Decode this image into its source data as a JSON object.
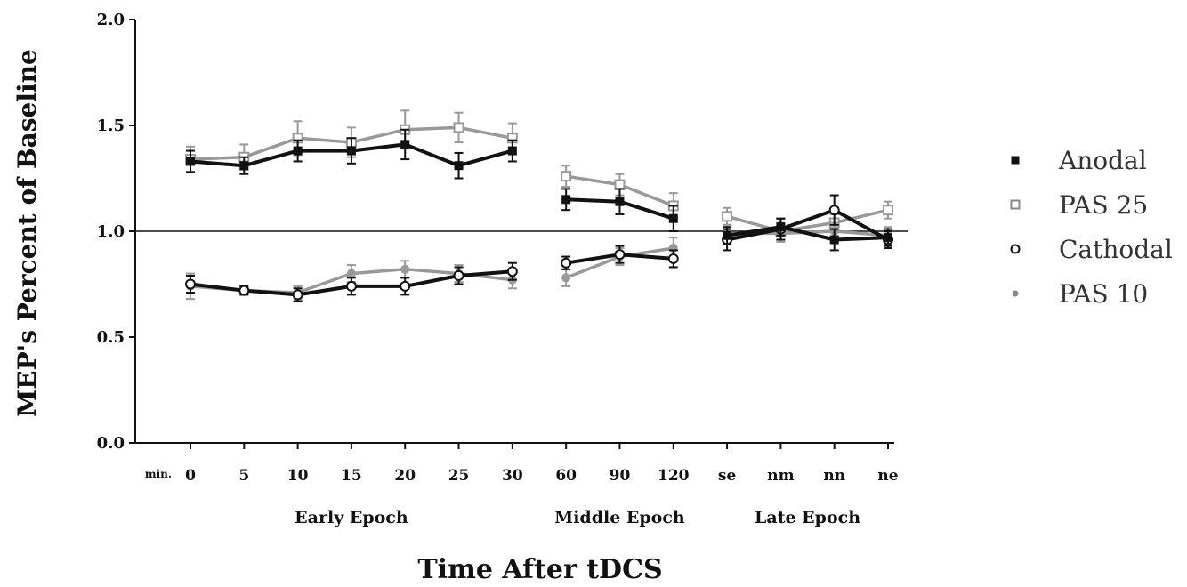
{
  "chart_data": {
    "type": "line",
    "ylabel": "MEP's Percent of Baseline",
    "xlabel": "Time After tDCS",
    "x_unit_label": "min.",
    "ylim": [
      0,
      2
    ],
    "yticks": [
      "0.0",
      "0.5",
      "1.0",
      "1.5",
      "2.0"
    ],
    "categories": [
      "0",
      "5",
      "10",
      "15",
      "20",
      "25",
      "30",
      "60",
      "90",
      "120",
      "se",
      "nm",
      "nn",
      "ne"
    ],
    "epochs": [
      {
        "label": "Early Epoch",
        "from": 0,
        "to": 6
      },
      {
        "label": "Middle Epoch",
        "from": 7,
        "to": 9
      },
      {
        "label": "Late Epoch",
        "from": 10,
        "to": 13
      }
    ],
    "segments": [
      [
        0,
        6
      ],
      [
        7,
        9
      ],
      [
        10,
        13
      ]
    ],
    "reference_line": 1.0,
    "grid": false,
    "legend_position": "right",
    "series": [
      {
        "name": "Anodal",
        "marker": "filled-square",
        "color": "#111111",
        "values": [
          1.33,
          1.31,
          1.38,
          1.38,
          1.41,
          1.31,
          1.38,
          1.15,
          1.14,
          1.06,
          0.98,
          1.02,
          0.96,
          0.97
        ],
        "errors": [
          0.05,
          0.04,
          0.05,
          0.06,
          0.07,
          0.06,
          0.05,
          0.05,
          0.06,
          0.06,
          0.04,
          0.04,
          0.05,
          0.04
        ]
      },
      {
        "name": "PAS 25",
        "marker": "open-square",
        "color": "#999999",
        "values": [
          1.34,
          1.35,
          1.44,
          1.42,
          1.48,
          1.49,
          1.44,
          1.26,
          1.22,
          1.12,
          1.07,
          1.0,
          1.04,
          1.1
        ],
        "errors": [
          0.06,
          0.06,
          0.08,
          0.07,
          0.09,
          0.07,
          0.07,
          0.05,
          0.05,
          0.06,
          0.04,
          0.04,
          0.04,
          0.04
        ]
      },
      {
        "name": "Cathodal",
        "marker": "open-circle",
        "color": "#111111",
        "values": [
          0.75,
          0.72,
          0.7,
          0.74,
          0.74,
          0.79,
          0.81,
          0.85,
          0.89,
          0.87,
          0.96,
          1.01,
          1.1,
          0.96
        ],
        "errors": [
          0.04,
          0.02,
          0.03,
          0.04,
          0.04,
          0.04,
          0.04,
          0.03,
          0.04,
          0.04,
          0.05,
          0.05,
          0.07,
          0.04
        ]
      },
      {
        "name": "PAS 10",
        "marker": "filled-circle",
        "color": "#999999",
        "values": [
          0.74,
          0.72,
          0.71,
          0.8,
          0.82,
          0.8,
          0.77,
          0.78,
          0.88,
          0.92,
          0.99,
          0.99,
          1.0,
          0.98
        ],
        "errors": [
          0.06,
          0.02,
          0.03,
          0.04,
          0.04,
          0.04,
          0.04,
          0.04,
          0.04,
          0.05,
          0.04,
          0.04,
          0.04,
          0.04
        ]
      }
    ]
  }
}
